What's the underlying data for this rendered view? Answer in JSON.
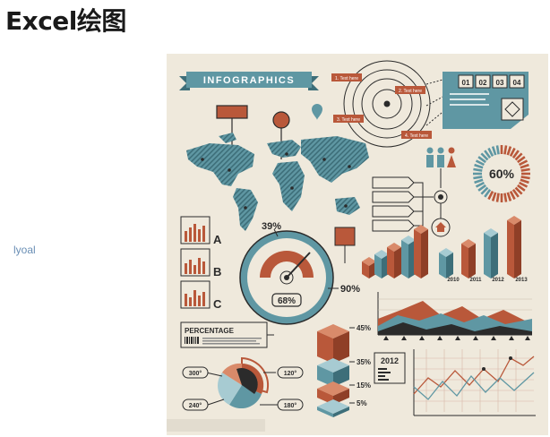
{
  "page": {
    "title": "Excel绘图",
    "side_label": "lyoal"
  },
  "poster": {
    "banner": "INFOGRAPHICS",
    "ring_labels": [
      "1. Text here",
      "2. Text here",
      "3. Text here",
      "4. Text here"
    ],
    "number_boxes": [
      "01",
      "02",
      "03",
      "04"
    ],
    "donut": {
      "label": "60%",
      "value": 60
    },
    "bar_years": [
      "2010",
      "2011",
      "2012",
      "2013"
    ],
    "mini_chart_letters": [
      "A",
      "B",
      "C"
    ],
    "gauge": {
      "top_label": "39%",
      "side_label": "90%",
      "center_label": "68%"
    },
    "percentage_label": "PERCENTAGE",
    "stack_labels": [
      "45%",
      "35%",
      "15%",
      "5%"
    ],
    "year_box": "2012",
    "pie_labels": [
      "300°",
      "120°",
      "240°",
      "180°"
    ],
    "colors": {
      "teal": "#5f97a3",
      "rust": "#b9583a",
      "dark": "#2b2b2b",
      "beige": "#efe9dc"
    }
  }
}
